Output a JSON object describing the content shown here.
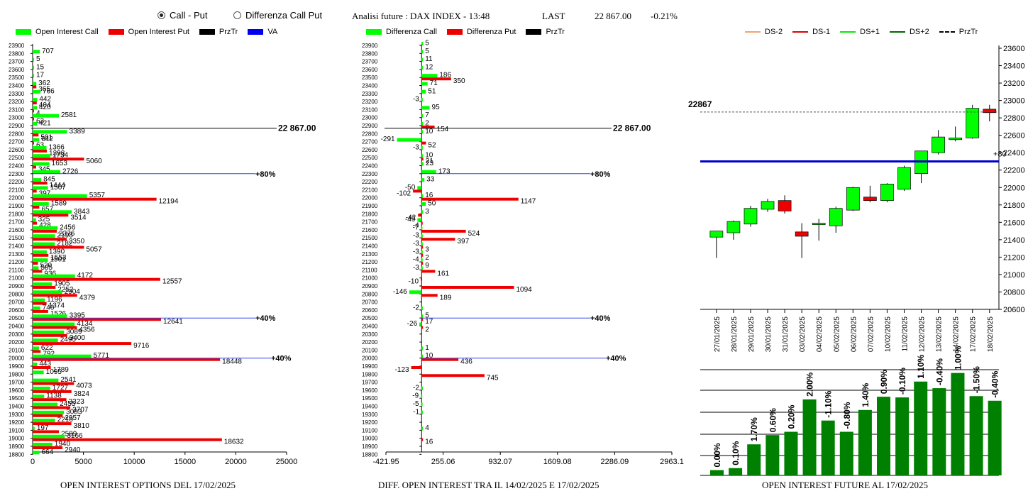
{
  "header": {
    "radio_call_put": "Call - Put",
    "radio_diff": "Differenza Call Put",
    "title": "Analisi future : DAX INDEX - 13:48",
    "last_label": "LAST",
    "last_value": "22 867.00",
    "last_change": "-0.21%"
  },
  "colors": {
    "green": "#00ff00",
    "red": "#ee0000",
    "black": "#000000",
    "blue": "#0000ee",
    "dark_green": "#008000"
  },
  "legend_left": [
    "Open Interest Call",
    "Open Interest Put",
    "PrzTr",
    "VA"
  ],
  "legend_mid": [
    "Differenza Call",
    "Differenza Put",
    "PrzTr"
  ],
  "legend_right": [
    "DS-2",
    "DS-1",
    "DS+1",
    "DS+2",
    "PrzTr"
  ],
  "captions": {
    "left": "OPEN INTEREST OPTIONS DEL 17/02/2025",
    "mid": "DIFF. OPEN INTEREST TRA IL 14/02/2025 E 17/02/2025",
    "right": "OPEN INTEREST FUTURE AL 17/02/2025"
  },
  "chart_data": [
    {
      "type": "bar",
      "orientation": "horizontal",
      "strikes": [
        23900,
        23800,
        23700,
        23600,
        23500,
        23400,
        23300,
        23200,
        23100,
        23000,
        22900,
        22800,
        22700,
        22600,
        22500,
        22400,
        22300,
        22200,
        22100,
        22000,
        21900,
        21800,
        21700,
        21600,
        21500,
        21400,
        21300,
        21200,
        21100,
        21000,
        20900,
        20800,
        20700,
        20600,
        20500,
        20400,
        20300,
        20200,
        20100,
        20000,
        19900,
        19800,
        19700,
        19600,
        19500,
        19400,
        19300,
        19200,
        19100,
        19000,
        18900,
        18800
      ],
      "series": [
        {
          "name": "Open Interest Call",
          "values": [
            null,
            707,
            5,
            15,
            17,
            362,
            766,
            442,
            420,
            2581,
            421,
            3389,
            642,
            1366,
            1734,
            1653,
            2726,
            845,
            1507,
            5357,
            1589,
            3843,
            325,
            2456,
            2198,
            2182,
            1390,
            1501,
            585,
            4172,
            1905,
            2904,
            1196,
            746,
            3395,
            4134,
            3089,
            2495,
            622,
            5771,
            443,
            1095,
            2541,
            1727,
            1138,
            2455,
            3083,
            2210,
            197,
            3166,
            1940,
            664
          ]
        },
        {
          "name": "Open Interest Put",
          "values": [
            null,
            null,
            null,
            null,
            null,
            365,
            null,
            404,
            4,
            63,
            null,
            581,
            63,
            1398,
            5060,
            345,
            null,
            1444,
            397,
            12194,
            657,
            3514,
            428,
            2376,
            3350,
            5057,
            1553,
            520,
            936,
            12557,
            2252,
            4379,
            1374,
            1526,
            12641,
            4356,
            3400,
            9716,
            792,
            18448,
            1789,
            null,
            4073,
            3824,
            3323,
            3707,
            2957,
            3810,
            2589,
            18632,
            2940,
            null
          ]
        }
      ],
      "special_lines": [
        {
          "label": "22 867.00",
          "strike": 22867
        },
        {
          "label": "80%",
          "strike": 22300
        },
        {
          "label": "40%",
          "strike": 20500
        },
        {
          "label": "40%",
          "strike": 20000
        }
      ],
      "xticks": [
        "0",
        "5000",
        "10000",
        "15000",
        "20000",
        "25000"
      ],
      "xlim": [
        0,
        25000
      ]
    },
    {
      "type": "bar",
      "orientation": "horizontal",
      "strikes": [
        23900,
        23800,
        23700,
        23600,
        23500,
        23400,
        23300,
        23200,
        23100,
        23000,
        22900,
        22800,
        22700,
        22600,
        22500,
        22400,
        22300,
        22200,
        22100,
        22000,
        21900,
        21800,
        21700,
        21600,
        21500,
        21400,
        21300,
        21200,
        21100,
        21000,
        20900,
        20800,
        20700,
        20600,
        20500,
        20400,
        20300,
        20200,
        20100,
        20000,
        19900,
        19800,
        19700,
        19600,
        19500,
        19400,
        19300,
        19200,
        19100,
        19000,
        18900,
        18800
      ],
      "series": [
        {
          "name": "Differenza Call",
          "values": [
            5,
            5,
            11,
            12,
            186,
            71,
            51,
            -3,
            95,
            7,
            2,
            10,
            -291,
            -3,
            10,
            23,
            173,
            33,
            -50,
            16,
            50,
            3,
            -49,
            -7,
            -3,
            -3,
            -3,
            -4,
            -3,
            null,
            null,
            -146,
            null,
            -2,
            5,
            -26,
            null,
            null,
            1,
            10,
            null,
            null,
            null,
            -2,
            -9,
            -5,
            -1,
            null,
            4,
            null,
            null,
            null
          ]
        },
        {
          "name": "Differenza Put",
          "values": [
            null,
            null,
            null,
            null,
            350,
            null,
            null,
            null,
            null,
            null,
            154,
            null,
            52,
            null,
            21,
            null,
            null,
            null,
            -102,
            1147,
            null,
            -42,
            -4,
            524,
            397,
            3,
            2,
            9,
            161,
            -10,
            1094,
            189,
            null,
            null,
            17,
            2,
            null,
            null,
            null,
            436,
            -123,
            745,
            null,
            null,
            null,
            null,
            null,
            null,
            null,
            16,
            null,
            null
          ]
        }
      ],
      "special_lines": [
        {
          "label": "22 867.00",
          "strike": 22867
        },
        {
          "label": "80%",
          "strike": 22300
        },
        {
          "label": "40%",
          "strike": 20500
        },
        {
          "label": "40%",
          "strike": 20000
        }
      ],
      "xticks": [
        "-421.95",
        "255.06",
        "932.07",
        "1609.08",
        "2286.09",
        "2963.1"
      ],
      "xlim": [
        -421.95,
        2963.1
      ]
    },
    {
      "type": "candlestick",
      "dates": [
        "27/01/2025",
        "28/01/2025",
        "29/01/2025",
        "30/01/2025",
        "31/01/2025",
        "03/02/2025",
        "04/02/2025",
        "05/02/2025",
        "06/02/2025",
        "07/02/2025",
        "10/02/2025",
        "11/02/2025",
        "12/02/2025",
        "13/02/2025",
        "14/02/2025",
        "17/02/2025",
        "18/02/2025"
      ],
      "open": [
        21430,
        21480,
        21580,
        21750,
        21850,
        21490,
        21580,
        21560,
        21740,
        21890,
        21850,
        21980,
        22160,
        22400,
        22550,
        22570,
        22900
      ],
      "high": [
        21500,
        21620,
        21790,
        21870,
        21910,
        21590,
        21640,
        21780,
        22010,
        22020,
        22050,
        22250,
        22420,
        22660,
        22700,
        22950,
        22950
      ],
      "low": [
        21190,
        21400,
        21550,
        21720,
        21700,
        21190,
        21390,
        21480,
        21730,
        21830,
        21830,
        21960,
        22050,
        22380,
        22530,
        22560,
        22760
      ],
      "close": [
        21500,
        21610,
        21760,
        21840,
        21730,
        21440,
        21590,
        21760,
        22000,
        21850,
        22040,
        22230,
        22420,
        22580,
        22570,
        22910,
        22860
      ],
      "last_label": "22867",
      "last": 22867,
      "blue_level": 22300,
      "blue_label": "+80",
      "yticks": [
        "23600",
        "23400",
        "23200",
        "23000",
        "22800",
        "22600",
        "22400",
        "22200",
        "22000",
        "21800",
        "21600",
        "21400",
        "21200",
        "21000",
        "20800",
        "20600"
      ],
      "ylim": [
        20600,
        23600
      ]
    },
    {
      "type": "bar",
      "categories": [
        "27/01/2025",
        "28/01/2025",
        "29/01/2025",
        "30/01/2025",
        "31/01/2025",
        "03/02/2025",
        "04/02/2025",
        "05/02/2025",
        "06/02/2025",
        "07/02/2025",
        "10/02/2025",
        "11/02/2025",
        "12/02/2025",
        "13/02/2025",
        "14/02/2025",
        "17/02/2025"
      ],
      "labels": [
        "0.00%",
        "0.10%",
        "1.70%",
        "0.60%",
        "0.20%",
        "2.00%",
        "-1.10%",
        "-0.80%",
        "1.40%",
        "0.90%",
        "-0.10%",
        "1.10%",
        "-0.40%",
        "1.00%",
        "-1.50%",
        "-0.40%"
      ],
      "values": [
        0.8,
        1.1,
        4.7,
        6.1,
        6.6,
        11.5,
        8.3,
        6.6,
        9.9,
        11.9,
        11.8,
        14.2,
        13.2,
        15.5,
        12.0,
        11.3
      ]
    }
  ]
}
